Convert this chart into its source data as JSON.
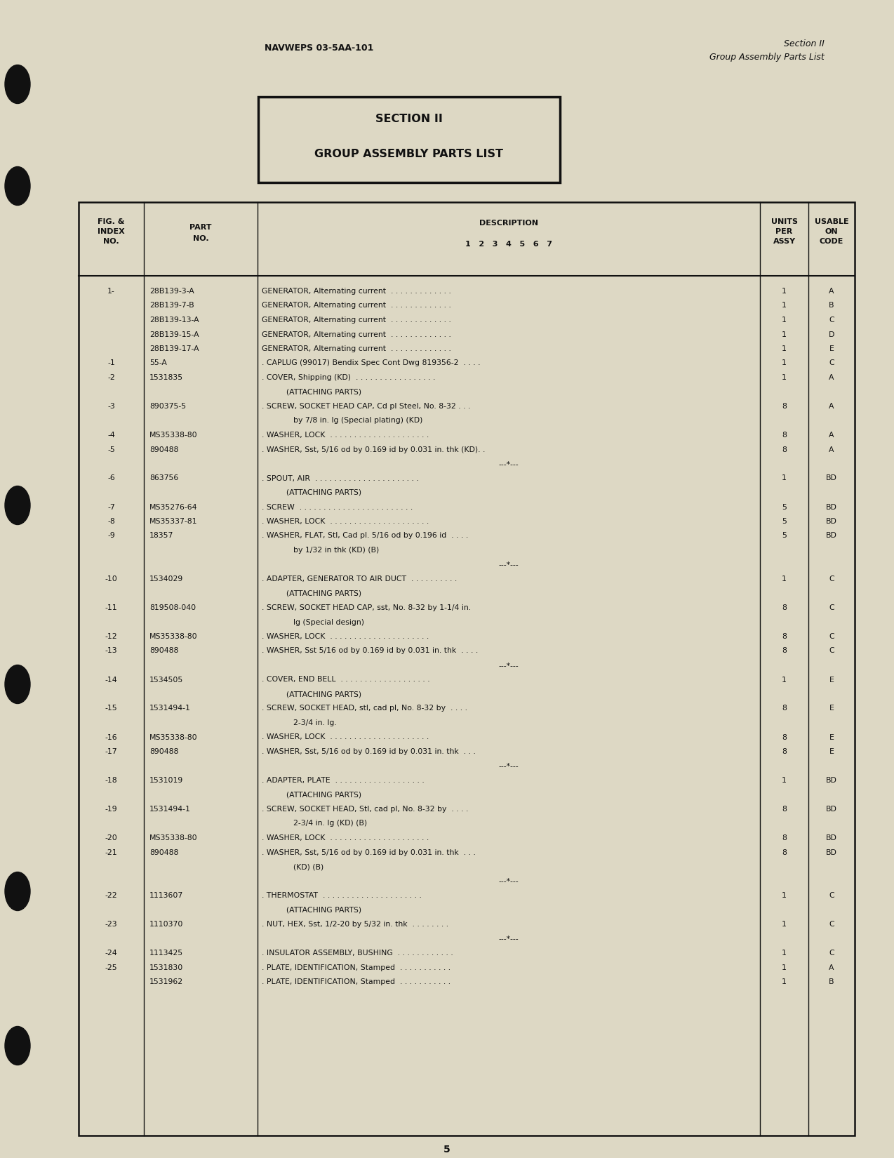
{
  "bg_color": "#ddd8c4",
  "header_left": "NAVWEPS 03-5AA-101",
  "header_right_line1": "Section II",
  "header_right_line2": "Group Assembly Parts List",
  "section_box_line1": "SECTION II",
  "section_box_line2": "GROUP ASSEMBLY PARTS LIST",
  "page_number": "5",
  "table_rows": [
    {
      "fig": "1-",
      "part": "28B139-3-A",
      "desc": "GENERATOR, Alternating current  . . . . . . . . . . . . .",
      "units": "1",
      "code": "A",
      "indent": 0
    },
    {
      "fig": "",
      "part": "28B139-7-B",
      "desc": "GENERATOR, Alternating current  . . . . . . . . . . . . .",
      "units": "1",
      "code": "B",
      "indent": 0
    },
    {
      "fig": "",
      "part": "28B139-13-A",
      "desc": "GENERATOR, Alternating current  . . . . . . . . . . . . .",
      "units": "1",
      "code": "C",
      "indent": 0
    },
    {
      "fig": "",
      "part": "28B139-15-A",
      "desc": "GENERATOR, Alternating current  . . . . . . . . . . . . .",
      "units": "1",
      "code": "D",
      "indent": 0
    },
    {
      "fig": "",
      "part": "28B139-17-A",
      "desc": "GENERATOR, Alternating current  . . . . . . . . . . . . .",
      "units": "1",
      "code": "E",
      "indent": 0
    },
    {
      "fig": "-1",
      "part": "55-A",
      "desc": ". CAPLUG (99017) Bendix Spec Cont Dwg 819356-2  . . . .",
      "units": "1",
      "code": "C",
      "indent": 0
    },
    {
      "fig": "-2",
      "part": "1531835",
      "desc": ". COVER, Shipping (KD)  . . . . . . . . . . . . . . . . .",
      "units": "1",
      "code": "A",
      "indent": 0
    },
    {
      "fig": "",
      "part": "",
      "desc": "(ATTACHING PARTS)",
      "units": "",
      "code": "",
      "indent": 2
    },
    {
      "fig": "-3",
      "part": "890375-5",
      "desc": ". SCREW, SOCKET HEAD CAP, Cd pl Steel, No. 8-32 . . .",
      "units": "8",
      "code": "A",
      "indent": 0
    },
    {
      "fig": "",
      "part": "",
      "desc": "by 7/8 in. lg (Special plating) (KD)",
      "units": "",
      "code": "",
      "indent": 3
    },
    {
      "fig": "-4",
      "part": "MS35338-80",
      "desc": ". WASHER, LOCK  . . . . . . . . . . . . . . . . . . . . .",
      "units": "8",
      "code": "A",
      "indent": 0
    },
    {
      "fig": "-5",
      "part": "890488",
      "desc": ". WASHER, Sst, 5/16 od by 0.169 id by 0.031 in. thk (KD). .",
      "units": "8",
      "code": "A",
      "indent": 0
    },
    {
      "fig": "",
      "part": "",
      "desc": "---*---",
      "units": "",
      "code": "",
      "indent": 5
    },
    {
      "fig": "-6",
      "part": "863756",
      "desc": ". SPOUT, AIR  . . . . . . . . . . . . . . . . . . . . . .",
      "units": "1",
      "code": "BD",
      "indent": 0
    },
    {
      "fig": "",
      "part": "",
      "desc": "(ATTACHING PARTS)",
      "units": "",
      "code": "",
      "indent": 2
    },
    {
      "fig": "-7",
      "part": "MS35276-64",
      "desc": ". SCREW  . . . . . . . . . . . . . . . . . . . . . . . .",
      "units": "5",
      "code": "BD",
      "indent": 0
    },
    {
      "fig": "-8",
      "part": "MS35337-81",
      "desc": ". WASHER, LOCK  . . . . . . . . . . . . . . . . . . . . .",
      "units": "5",
      "code": "BD",
      "indent": 0
    },
    {
      "fig": "-9",
      "part": "18357",
      "desc": ". WASHER, FLAT, Stl, Cad pl. 5/16 od by 0.196 id  . . . .",
      "units": "5",
      "code": "BD",
      "indent": 0
    },
    {
      "fig": "",
      "part": "",
      "desc": "by 1/32 in thk (KD) (B)",
      "units": "",
      "code": "",
      "indent": 3
    },
    {
      "fig": "",
      "part": "",
      "desc": "---*---",
      "units": "",
      "code": "",
      "indent": 5
    },
    {
      "fig": "-10",
      "part": "1534029",
      "desc": ". ADAPTER, GENERATOR TO AIR DUCT  . . . . . . . . . .",
      "units": "1",
      "code": "C",
      "indent": 0
    },
    {
      "fig": "",
      "part": "",
      "desc": "(ATTACHING PARTS)",
      "units": "",
      "code": "",
      "indent": 2
    },
    {
      "fig": "-11",
      "part": "819508-040",
      "desc": ". SCREW, SOCKET HEAD CAP, sst, No. 8-32 by 1-1/4 in.",
      "units": "8",
      "code": "C",
      "indent": 0
    },
    {
      "fig": "",
      "part": "",
      "desc": "lg (Special design)",
      "units": "",
      "code": "",
      "indent": 3
    },
    {
      "fig": "-12",
      "part": "MS35338-80",
      "desc": ". WASHER, LOCK  . . . . . . . . . . . . . . . . . . . . .",
      "units": "8",
      "code": "C",
      "indent": 0
    },
    {
      "fig": "-13",
      "part": "890488",
      "desc": ". WASHER, Sst 5/16 od by 0.169 id by 0.031 in. thk  . . . .",
      "units": "8",
      "code": "C",
      "indent": 0
    },
    {
      "fig": "",
      "part": "",
      "desc": "---*---",
      "units": "",
      "code": "",
      "indent": 5
    },
    {
      "fig": "-14",
      "part": "1534505",
      "desc": ". COVER, END BELL  . . . . . . . . . . . . . . . . . . .",
      "units": "1",
      "code": "E",
      "indent": 0
    },
    {
      "fig": "",
      "part": "",
      "desc": "(ATTACHING PARTS)",
      "units": "",
      "code": "",
      "indent": 2
    },
    {
      "fig": "-15",
      "part": "1531494-1",
      "desc": ". SCREW, SOCKET HEAD, stl, cad pl, No. 8-32 by  . . . .",
      "units": "8",
      "code": "E",
      "indent": 0
    },
    {
      "fig": "",
      "part": "",
      "desc": "2-3/4 in. lg.",
      "units": "",
      "code": "",
      "indent": 3
    },
    {
      "fig": "-16",
      "part": "MS35338-80",
      "desc": ". WASHER, LOCK  . . . . . . . . . . . . . . . . . . . . .",
      "units": "8",
      "code": "E",
      "indent": 0
    },
    {
      "fig": "-17",
      "part": "890488",
      "desc": ". WASHER, Sst, 5/16 od by 0.169 id by 0.031 in. thk  . . .",
      "units": "8",
      "code": "E",
      "indent": 0
    },
    {
      "fig": "",
      "part": "",
      "desc": "---*---",
      "units": "",
      "code": "",
      "indent": 5
    },
    {
      "fig": "-18",
      "part": "1531019",
      "desc": ". ADAPTER, PLATE  . . . . . . . . . . . . . . . . . . .",
      "units": "1",
      "code": "BD",
      "indent": 0
    },
    {
      "fig": "",
      "part": "",
      "desc": "(ATTACHING PARTS)",
      "units": "",
      "code": "",
      "indent": 2
    },
    {
      "fig": "-19",
      "part": "1531494-1",
      "desc": ". SCREW, SOCKET HEAD, Stl, cad pl, No. 8-32 by  . . . .",
      "units": "8",
      "code": "BD",
      "indent": 0
    },
    {
      "fig": "",
      "part": "",
      "desc": "2-3/4 in. lg (KD) (B)",
      "units": "",
      "code": "",
      "indent": 3
    },
    {
      "fig": "-20",
      "part": "MS35338-80",
      "desc": ". WASHER, LOCK  . . . . . . . . . . . . . . . . . . . . .",
      "units": "8",
      "code": "BD",
      "indent": 0
    },
    {
      "fig": "-21",
      "part": "890488",
      "desc": ". WASHER, Sst, 5/16 od by 0.169 id by 0.031 in. thk  . . .",
      "units": "8",
      "code": "BD",
      "indent": 0
    },
    {
      "fig": "",
      "part": "",
      "desc": "(KD) (B)",
      "units": "",
      "code": "",
      "indent": 3
    },
    {
      "fig": "",
      "part": "",
      "desc": "---*---",
      "units": "",
      "code": "",
      "indent": 5
    },
    {
      "fig": "-22",
      "part": "1113607",
      "desc": ". THERMOSTAT  . . . . . . . . . . . . . . . . . . . . .",
      "units": "1",
      "code": "C",
      "indent": 0
    },
    {
      "fig": "",
      "part": "",
      "desc": "(ATTACHING PARTS)",
      "units": "",
      "code": "",
      "indent": 2
    },
    {
      "fig": "-23",
      "part": "1110370",
      "desc": ". NUT, HEX, Sst, 1/2-20 by 5/32 in. thk  . . . . . . . .",
      "units": "1",
      "code": "C",
      "indent": 0
    },
    {
      "fig": "",
      "part": "",
      "desc": "---*---",
      "units": "",
      "code": "",
      "indent": 5
    },
    {
      "fig": "-24",
      "part": "1113425",
      "desc": ". INSULATOR ASSEMBLY, BUSHING  . . . . . . . . . . . .",
      "units": "1",
      "code": "C",
      "indent": 0
    },
    {
      "fig": "-25",
      "part": "1531830",
      "desc": ". PLATE, IDENTIFICATION, Stamped  . . . . . . . . . . .",
      "units": "1",
      "code": "A",
      "indent": 0
    },
    {
      "fig": "",
      "part": "1531962",
      "desc": ". PLATE, IDENTIFICATION, Stamped  . . . . . . . . . . .",
      "units": "1",
      "code": "B",
      "indent": 0
    }
  ]
}
